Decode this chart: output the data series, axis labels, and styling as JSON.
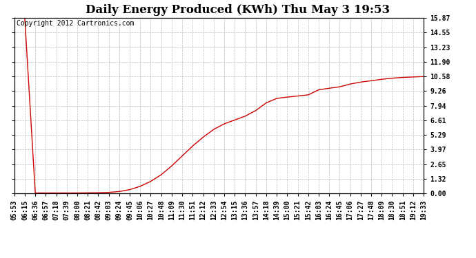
{
  "title": "Daily Energy Produced (KWh) Thu May 3 19:53",
  "copyright_text": "Copyright 2012 Cartronics.com",
  "line_color": "#cc0000",
  "bg_color": "#ffffff",
  "plot_bg_color": "#ffffff",
  "grid_color": "#bbbbbb",
  "yticks": [
    0.0,
    1.32,
    2.65,
    3.97,
    5.29,
    6.61,
    7.94,
    9.26,
    10.58,
    11.9,
    13.23,
    14.55,
    15.87
  ],
  "ylim": [
    0.0,
    15.87
  ],
  "xtick_labels": [
    "05:53",
    "06:15",
    "06:36",
    "06:57",
    "07:18",
    "07:39",
    "08:00",
    "08:21",
    "08:42",
    "09:03",
    "09:24",
    "09:45",
    "10:06",
    "10:27",
    "10:48",
    "11:09",
    "11:30",
    "11:51",
    "12:12",
    "12:33",
    "12:54",
    "13:15",
    "13:36",
    "13:57",
    "14:18",
    "14:39",
    "15:00",
    "15:21",
    "15:42",
    "16:03",
    "16:24",
    "16:45",
    "17:06",
    "17:27",
    "17:48",
    "18:09",
    "18:30",
    "18:51",
    "19:12",
    "19:33"
  ],
  "y_values": [
    15.87,
    15.87,
    0.05,
    0.05,
    0.05,
    0.05,
    0.05,
    0.06,
    0.07,
    0.1,
    0.18,
    0.35,
    0.65,
    1.1,
    1.7,
    2.5,
    3.4,
    4.3,
    5.1,
    5.8,
    6.3,
    6.65,
    7.0,
    7.5,
    8.2,
    8.6,
    8.72,
    8.82,
    8.92,
    9.38,
    9.52,
    9.65,
    9.9,
    10.08,
    10.2,
    10.33,
    10.43,
    10.5,
    10.54,
    10.58
  ],
  "title_fontsize": 12,
  "tick_fontsize": 7,
  "copyright_fontsize": 7
}
